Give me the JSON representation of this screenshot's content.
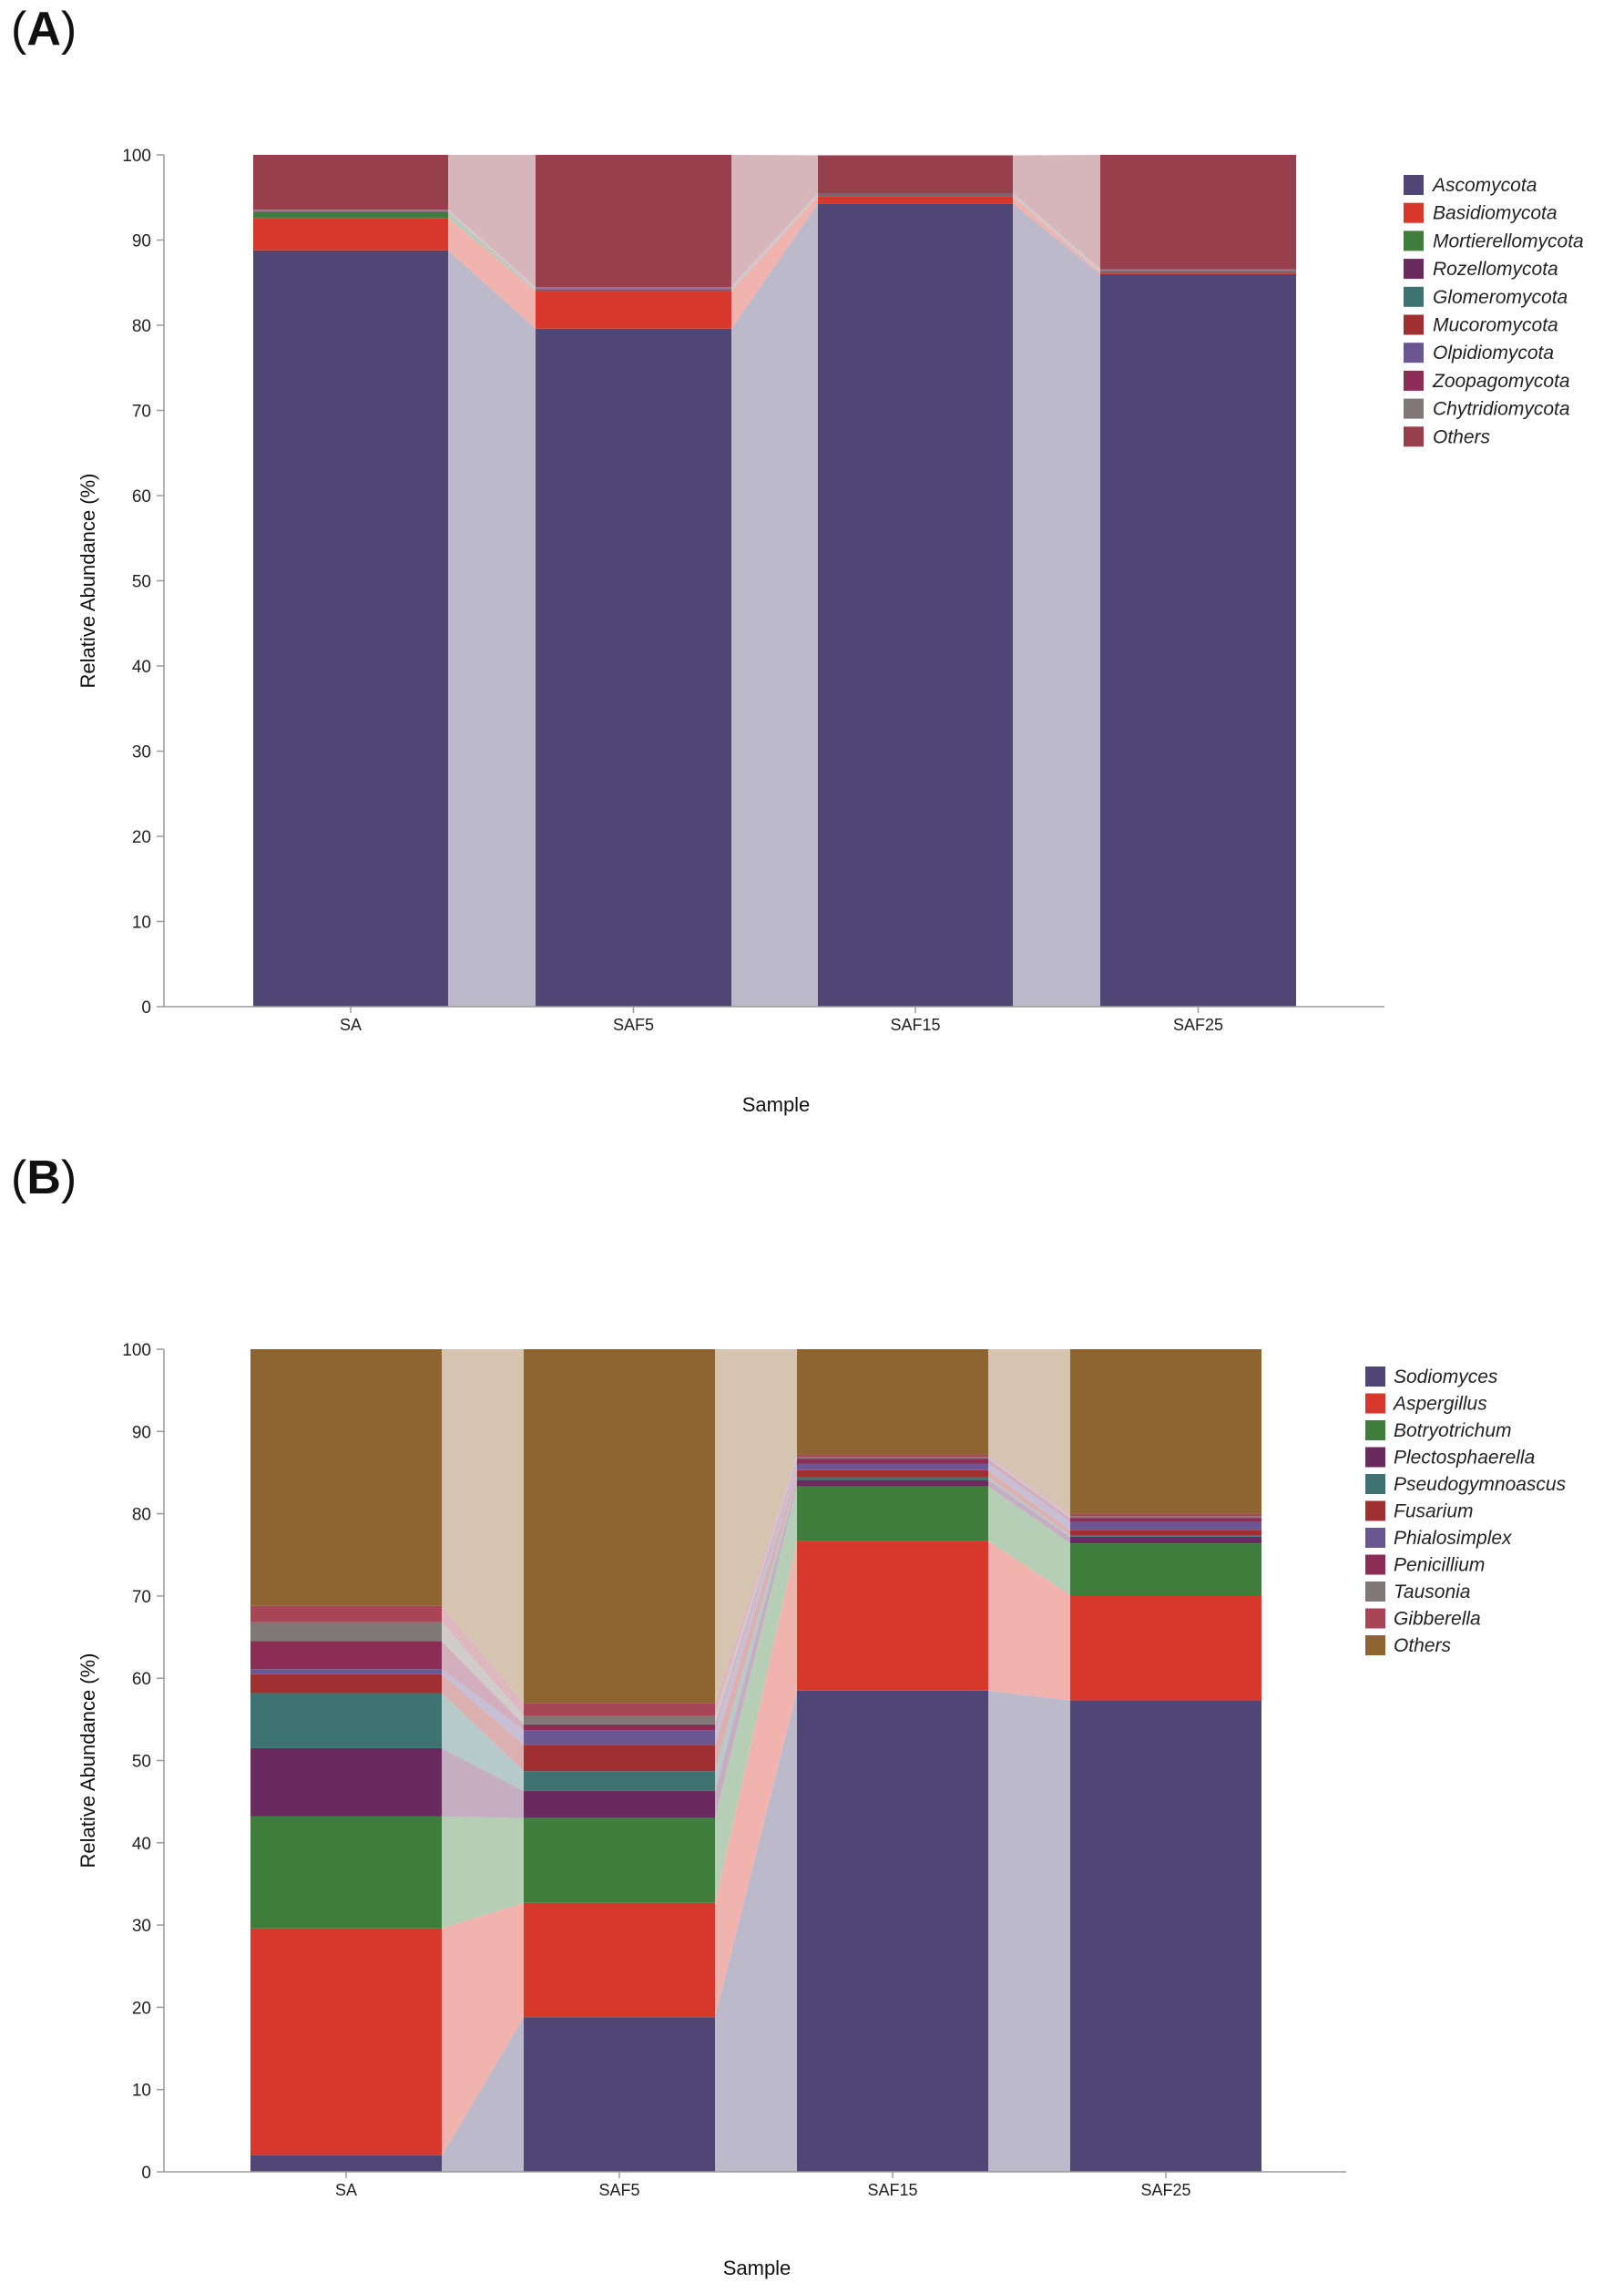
{
  "panels": [
    {
      "open": "(",
      "letter": "A",
      "close": ")"
    },
    {
      "open": "(",
      "letter": "B",
      "close": ")"
    }
  ],
  "chart_data": [
    {
      "type": "bar",
      "stacked": true,
      "panel": "A",
      "title": "",
      "xlabel": "Sample",
      "ylabel": "Relative Abundance (%)",
      "ylim": [
        0,
        100
      ],
      "yticks": [
        0,
        10,
        20,
        30,
        40,
        50,
        60,
        70,
        80,
        90,
        100
      ],
      "categories": [
        "SA",
        "SAF5",
        "SAF15",
        "SAF25"
      ],
      "legend_position": "right",
      "series": [
        {
          "name": "Ascomycota",
          "color": "#4f4676",
          "values": [
            88.8,
            79.6,
            94.3,
            86.0
          ]
        },
        {
          "name": "Basidiomycota",
          "color": "#d8382b",
          "values": [
            3.8,
            4.4,
            0.8,
            0.2
          ]
        },
        {
          "name": "Mortierellomycota",
          "color": "#3e7d3c",
          "values": [
            0.6,
            0.1,
            0.1,
            0.05
          ]
        },
        {
          "name": "Rozellomycota",
          "color": "#6a2a5e",
          "values": [
            0.1,
            0.1,
            0.05,
            0.05
          ]
        },
        {
          "name": "Glomeromycota",
          "color": "#3d7471",
          "values": [
            0.05,
            0.05,
            0.05,
            0.05
          ]
        },
        {
          "name": "Mucoromycota",
          "color": "#a02f31",
          "values": [
            0.05,
            0.05,
            0.05,
            0.05
          ]
        },
        {
          "name": "Olpidiomycota",
          "color": "#6a5791",
          "values": [
            0.05,
            0.05,
            0.05,
            0.05
          ]
        },
        {
          "name": "Zoopagomycota",
          "color": "#8b2d55",
          "values": [
            0.05,
            0.05,
            0.05,
            0.05
          ]
        },
        {
          "name": "Chytridiomycota",
          "color": "#807877",
          "values": [
            0.05,
            0.05,
            0.05,
            0.05
          ]
        },
        {
          "name": "Others",
          "color": "#973f4c",
          "values": [
            6.45,
            15.55,
            4.45,
            13.45
          ]
        }
      ]
    },
    {
      "type": "bar",
      "stacked": true,
      "panel": "B",
      "title": "",
      "xlabel": "Sample",
      "ylabel": "Relative Abundance (%)",
      "ylim": [
        0,
        100
      ],
      "yticks": [
        0,
        10,
        20,
        30,
        40,
        50,
        60,
        70,
        80,
        90,
        100
      ],
      "categories": [
        "SA",
        "SAF5",
        "SAF15",
        "SAF25"
      ],
      "legend_position": "right",
      "series": [
        {
          "name": "Sodiomyces",
          "color": "#4f4676",
          "values": [
            2.0,
            18.8,
            58.5,
            57.3
          ]
        },
        {
          "name": "Aspergillus",
          "color": "#d8382b",
          "values": [
            27.6,
            13.9,
            18.2,
            12.8
          ]
        },
        {
          "name": "Botryotrichum",
          "color": "#3e7d3c",
          "values": [
            13.6,
            10.3,
            6.6,
            6.3
          ]
        },
        {
          "name": "Plectosphaerella",
          "color": "#6a2a5e",
          "values": [
            8.3,
            3.3,
            0.8,
            0.8
          ]
        },
        {
          "name": "Pseudogymnoascus",
          "color": "#3d7471",
          "values": [
            6.7,
            2.4,
            0.3,
            0.2
          ]
        },
        {
          "name": "Fusarium",
          "color": "#a02f31",
          "values": [
            2.3,
            3.2,
            0.9,
            0.6
          ]
        },
        {
          "name": "Phialosimplex",
          "color": "#6a5791",
          "values": [
            0.6,
            1.8,
            0.8,
            1.0
          ]
        },
        {
          "name": "Penicillium",
          "color": "#8b2d55",
          "values": [
            3.4,
            0.7,
            0.6,
            0.5
          ]
        },
        {
          "name": "Tausonia",
          "color": "#807877",
          "values": [
            2.3,
            1.0,
            0.2,
            0.2
          ]
        },
        {
          "name": "Gibberella",
          "color": "#a84556",
          "values": [
            2.0,
            1.6,
            0.3,
            0.3
          ]
        },
        {
          "name": "Others",
          "color": "#8e6430",
          "values": [
            31.2,
            43.0,
            12.8,
            20.0
          ]
        }
      ]
    }
  ]
}
